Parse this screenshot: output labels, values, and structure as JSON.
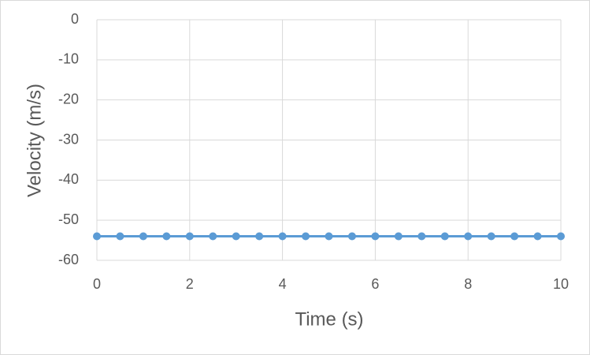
{
  "chart_data": {
    "type": "line",
    "x": [
      0,
      0.5,
      1,
      1.5,
      2,
      2.5,
      3,
      3.5,
      4,
      4.5,
      5,
      5.5,
      6,
      6.5,
      7,
      7.5,
      8,
      8.5,
      9,
      9.5,
      10
    ],
    "values": [
      -54,
      -54,
      -54,
      -54,
      -54,
      -54,
      -54,
      -54,
      -54,
      -54,
      -54,
      -54,
      -54,
      -54,
      -54,
      -54,
      -54,
      -54,
      -54,
      -54,
      -54
    ],
    "color": "#5b9bd5",
    "x_label": "Time (s)",
    "y_label": "Velocity (m/s)",
    "xlim": [
      0,
      10
    ],
    "xticks": [
      0,
      2,
      4,
      6,
      8,
      10
    ],
    "ylim": [
      -60,
      0
    ],
    "yticks": [
      0,
      -10,
      -20,
      -30,
      -40,
      -50,
      -60
    ],
    "grid": true
  }
}
